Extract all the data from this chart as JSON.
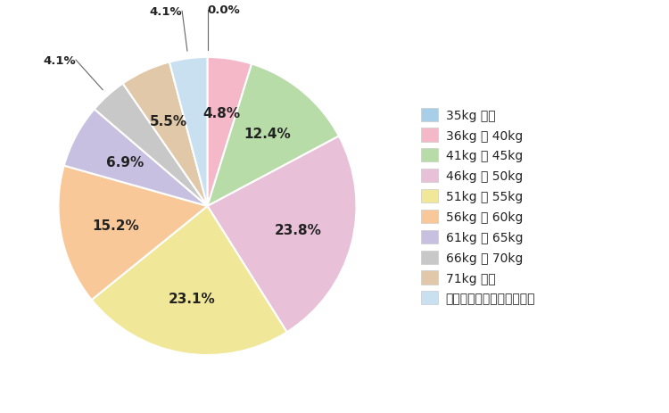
{
  "legend_labels": [
    "35kg 以下",
    "36kg ～ 40kg",
    "41kg ～ 45kg",
    "46kg ～ 50kg",
    "51kg ～ 55kg",
    "56kg ～ 60kg",
    "61kg ～ 65kg",
    "66kg ～ 70kg",
    "71kg 以上",
    "わからない・答えたくない"
  ],
  "values": [
    0.0,
    4.8,
    12.4,
    23.8,
    23.1,
    15.2,
    6.9,
    4.1,
    5.5,
    4.1
  ],
  "pct_labels": [
    "0.0%",
    "4.8%",
    "12.4%",
    "23.8%",
    "23.1%",
    "15.2%",
    "6.9%",
    "4.1%",
    "5.5%",
    "4.1%"
  ],
  "colors": [
    "#a8cfe8",
    "#f4b8c8",
    "#b8dca8",
    "#e8c0d8",
    "#f0e898",
    "#f8c898",
    "#c8c0e0",
    "#c8c8c8",
    "#e0c8a8",
    "#c8e0f0"
  ],
  "background_color": "#ffffff",
  "startangle": 90,
  "label_color": "#222222",
  "inside_threshold": 15,
  "label_fontsize": 11,
  "outside_fontsize": 9.5,
  "legend_fontsize": 10
}
